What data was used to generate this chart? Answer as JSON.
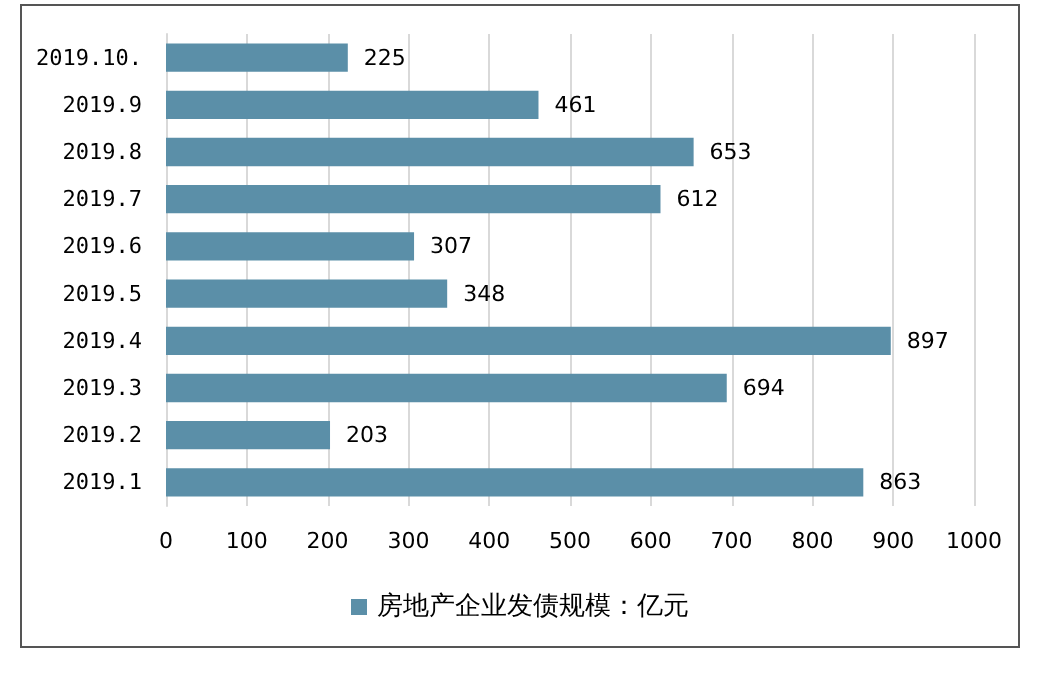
{
  "chart_data": {
    "type": "bar",
    "orientation": "horizontal",
    "categories": [
      "2019.10.",
      "2019.9",
      "2019.8",
      "2019.7",
      "2019.6",
      "2019.5",
      "2019.4",
      "2019.3",
      "2019.2",
      "2019.1"
    ],
    "series": [
      {
        "name": "房地产企业发债规模：亿元",
        "color": "#5b8fa8",
        "values": [
          225,
          461,
          653,
          612,
          307,
          348,
          897,
          694,
          203,
          863
        ]
      }
    ],
    "xlim": [
      0,
      1000
    ],
    "xticks": [
      0,
      100,
      200,
      300,
      400,
      500,
      600,
      700,
      800,
      900,
      1000
    ],
    "grid": "x",
    "legend": "bottom",
    "data_labels": true
  }
}
